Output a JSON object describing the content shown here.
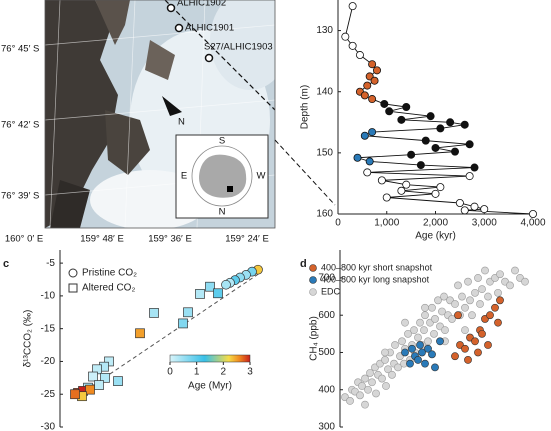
{
  "map": {
    "sites": [
      "ALHIC1902",
      "ALHIC1901",
      "S27/ALHIC1903"
    ],
    "lat_labels": [
      "76° 45′ S",
      "76° 42′ S",
      "76° 39′ S"
    ],
    "lon_labels": [
      "160° 0′ E",
      "159° 48′ E",
      "159° 36′ E",
      "159° 24′ E"
    ],
    "north": "N",
    "inset_labels": [
      "S",
      "E",
      "W",
      "N"
    ]
  },
  "chart_data": [
    {
      "type": "scatter-line",
      "ylabel": "Depth (m)",
      "xlabel": "Age (kyr)",
      "x": [
        300,
        150,
        300,
        450,
        700,
        800,
        650,
        750,
        600,
        450,
        550,
        700,
        950,
        1400,
        1050,
        1900,
        1300,
        2300,
        2600,
        2100,
        700,
        550,
        1800,
        2700,
        2000,
        2400,
        1500,
        400,
        650,
        1700,
        2800,
        600,
        2700,
        900,
        1400,
        2100,
        1300,
        2000,
        1000,
        2500,
        2800,
        3000,
        2600,
        4000
      ],
      "values": [
        126,
        131,
        132.5,
        134,
        135.5,
        136.5,
        137.5,
        138.2,
        139,
        140,
        140.6,
        141.2,
        142,
        142.5,
        143.2,
        144,
        144.6,
        145,
        145.4,
        146,
        146.6,
        147.2,
        148,
        148.6,
        149.2,
        149.8,
        150.3,
        150.8,
        151.4,
        152,
        152.4,
        153.2,
        153.8,
        154.5,
        155.2,
        155.6,
        156.2,
        156.7,
        157.3,
        158.2,
        158.8,
        159.2,
        159.4,
        160
      ],
      "point_colors": [
        "#ffffff",
        "#ffffff",
        "#ffffff",
        "#ffffff",
        "#d4622b",
        "#d4622b",
        "#d4622b",
        "#d4622b",
        "#d4622b",
        "#d4622b",
        "#d4622b",
        "#d4622b",
        "#111111",
        "#111111",
        "#111111",
        "#111111",
        "#111111",
        "#111111",
        "#111111",
        "#111111",
        "#2a7ab8",
        "#2a7ab8",
        "#111111",
        "#111111",
        "#111111",
        "#111111",
        "#111111",
        "#2a7ab8",
        "#2a7ab8",
        "#111111",
        "#111111",
        "#ffffff",
        "#ffffff",
        "#ffffff",
        "#ffffff",
        "#ffffff",
        "#ffffff",
        "#ffffff",
        "#ffffff",
        "#ffffff",
        "#ffffff",
        "#ffffff",
        "#ffffff",
        "#ffffff"
      ],
      "xlim": [
        0,
        4000
      ],
      "ylim": [
        125,
        160
      ],
      "y_inverted": true,
      "xticks": [
        0,
        {
          "value": 1000,
          "label": "1,000"
        },
        {
          "value": 2000,
          "label": "2,000"
        },
        {
          "value": 3000,
          "label": "3,000"
        },
        {
          "value": 4000,
          "label": "4,000"
        }
      ],
      "yticks": [
        130,
        140,
        150,
        160
      ]
    },
    {
      "type": "scatter",
      "panel_label": "c",
      "ylabel": "δ¹³CCO₂ (‰)",
      "series": [
        {
          "name": "Pristine CO₂",
          "marker": "circle",
          "x": [
            198,
            192,
            186,
            180,
            175,
            170,
            166
          ],
          "values": [
            -6,
            -6.3,
            -6.8,
            -7.2,
            -7.6,
            -8,
            -8.3
          ],
          "age": [
            2.3,
            0.8,
            0.5,
            0.6,
            1,
            0.3,
            0.4
          ]
        },
        {
          "name": "Altered CO₂",
          "marker": "square",
          "x": [
            150,
            158,
            140,
            128,
            94,
            123,
            80,
            49,
            44,
            37,
            33,
            45,
            58,
            39,
            28,
            18,
            23,
            30,
            22,
            15
          ],
          "values": [
            -8.6,
            -9.6,
            -9.7,
            -12.5,
            -12.6,
            -14.2,
            -15.7,
            -20,
            -20.8,
            -21.2,
            -22.3,
            -22.5,
            -23,
            -23.6,
            -24,
            -24.8,
            -24.5,
            -24.3,
            -25.3,
            -25
          ],
          "age": [
            0.6,
            1.0,
            0.3,
            0.5,
            0.4,
            0.7,
            2.5,
            0.2,
            0.3,
            0.2,
            0.1,
            0.3,
            0.5,
            0.2,
            0.4,
            2.8,
            3.0,
            2.6,
            2.3,
            2.7
          ]
        }
      ],
      "fit": {
        "x": [
          15,
          200
        ],
        "values": [
          -25.5,
          -6.5
        ]
      },
      "xlim": [
        0,
        210
      ],
      "ylim": [
        -30,
        -3
      ],
      "yticks": [
        -5,
        -10,
        -15,
        -20,
        -25,
        -30
      ],
      "colorbar": {
        "label": "Age (Myr)",
        "lim": [
          0,
          3
        ],
        "ticks": [
          0,
          1,
          2,
          3
        ],
        "stops": [
          {
            "value": 0,
            "color": "#d8f4fa"
          },
          {
            "value": 1.3,
            "color": "#38c0e8"
          },
          {
            "value": 2.2,
            "color": "#f6dc48"
          },
          {
            "value": 2.6,
            "color": "#f08a20"
          },
          {
            "value": 3,
            "color": "#c8201c"
          }
        ]
      }
    },
    {
      "type": "scatter",
      "panel_label": "d",
      "ylabel": "CH₄ (ppb)",
      "series": [
        {
          "name": "400–800 kyr short snapshot",
          "color": "#d4622b",
          "x": [
            115,
            120,
            125,
            130,
            135,
            140,
            145,
            150,
            155,
            160,
            128,
            138,
            148,
            158,
            118,
            142
          ],
          "values": [
            490,
            520,
            510,
            540,
            530,
            560,
            590,
            600,
            620,
            640,
            480,
            500,
            520,
            580,
            600,
            550
          ]
        },
        {
          "name": "400–800 kyr long snapshot",
          "color": "#2a7ab8",
          "x": [
            65,
            70,
            72,
            75,
            78,
            80,
            82,
            85,
            88,
            92,
            95,
            100
          ],
          "values": [
            500,
            470,
            510,
            490,
            480,
            520,
            500,
            470,
            510,
            495,
            460,
            530
          ]
        },
        {
          "name": "EDC",
          "color": "#d6d6d6",
          "x": [
            5,
            10,
            12,
            15,
            18,
            20,
            22,
            25,
            28,
            30,
            32,
            35,
            36,
            38,
            40,
            42,
            45,
            46,
            48,
            50,
            52,
            54,
            55,
            58,
            60,
            62,
            64,
            65,
            68,
            70,
            72,
            74,
            75,
            78,
            80,
            82,
            84,
            85,
            88,
            90,
            92,
            94,
            95,
            98,
            100,
            102,
            104,
            105,
            108,
            110,
            112,
            115,
            118,
            120,
            122,
            125,
            128,
            130,
            132,
            135,
            138,
            140,
            142,
            145,
            148,
            150,
            155,
            158,
            160,
            165,
            170,
            175,
            180,
            185,
            25,
            45,
            65,
            85,
            105,
            125
          ],
          "values": [
            380,
            370,
            400,
            395,
            420,
            385,
            410,
            430,
            400,
            445,
            420,
            460,
            390,
            440,
            470,
            430,
            480,
            410,
            455,
            500,
            440,
            470,
            520,
            460,
            490,
            530,
            470,
            510,
            550,
            480,
            520,
            560,
            500,
            540,
            580,
            520,
            560,
            600,
            530,
            580,
            620,
            550,
            590,
            640,
            570,
            610,
            650,
            560,
            600,
            640,
            590,
            630,
            680,
            600,
            650,
            620,
            690,
            640,
            600,
            660,
            700,
            630,
            670,
            720,
            650,
            690,
            700,
            660,
            710,
            690,
            680,
            720,
            700,
            690,
            360,
            500,
            580,
            620,
            530,
            560
          ]
        }
      ],
      "draw_order": [
        2,
        0,
        1
      ],
      "xlim": [
        0,
        205
      ],
      "ylim": [
        300,
        775
      ],
      "yticks": [
        300,
        400,
        500,
        600,
        700
      ]
    }
  ]
}
